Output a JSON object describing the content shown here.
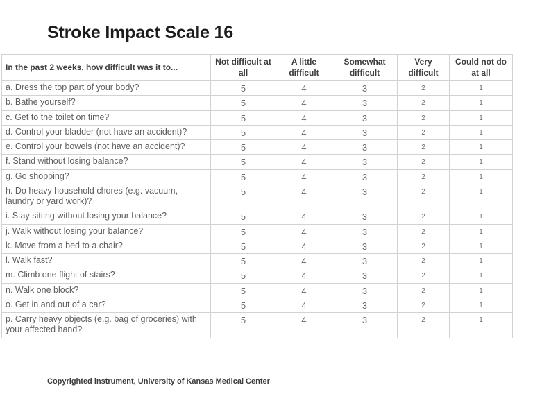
{
  "title": "Stroke Impact Scale 16",
  "table": {
    "header": {
      "question_label": "In the past 2 weeks, how difficult was it to...",
      "options": [
        "Not difficult at all",
        "A little difficult",
        "Somewhat difficult",
        "Very difficult",
        "Could not do at all"
      ]
    },
    "rows": [
      {
        "question": "a. Dress the top part of your body?",
        "values": [
          5,
          4,
          3,
          2,
          1
        ]
      },
      {
        "question": "b. Bathe yourself?",
        "values": [
          5,
          4,
          3,
          2,
          1
        ]
      },
      {
        "question": "c. Get to the toilet on time?",
        "values": [
          5,
          4,
          3,
          2,
          1
        ]
      },
      {
        "question": "d. Control your bladder (not have an accident)?",
        "values": [
          5,
          4,
          3,
          2,
          1
        ]
      },
      {
        "question": "e. Control your bowels (not have an accident)?",
        "values": [
          5,
          4,
          3,
          2,
          1
        ]
      },
      {
        "question": "f. Stand without losing balance?",
        "values": [
          5,
          4,
          3,
          2,
          1
        ]
      },
      {
        "question": "g. Go shopping?",
        "values": [
          5,
          4,
          3,
          2,
          1
        ]
      },
      {
        "question": "h. Do heavy household chores (e.g. vacuum, laundry or yard work)?",
        "values": [
          5,
          4,
          3,
          2,
          1
        ]
      },
      {
        "question": "i. Stay sitting without losing your balance?",
        "values": [
          5,
          4,
          3,
          2,
          1
        ]
      },
      {
        "question": "j. Walk without losing your balance?",
        "values": [
          5,
          4,
          3,
          2,
          1
        ]
      },
      {
        "question": "k. Move from a bed to a chair?",
        "values": [
          5,
          4,
          3,
          2,
          1
        ]
      },
      {
        "question": "l. Walk fast?",
        "values": [
          5,
          4,
          3,
          2,
          1
        ]
      },
      {
        "question": "m. Climb one flight of stairs?",
        "values": [
          5,
          4,
          3,
          2,
          1
        ]
      },
      {
        "question": "n. Walk one block?",
        "values": [
          5,
          4,
          3,
          2,
          1
        ]
      },
      {
        "question": "o. Get in and out of a car?",
        "values": [
          5,
          4,
          3,
          2,
          1
        ]
      },
      {
        "question": "p. Carry heavy objects (e.g. bag of groceries) with your affected hand?",
        "values": [
          5,
          4,
          3,
          2,
          1
        ]
      }
    ]
  },
  "footer": "Copyrighted instrument, University of Kansas Medical Center"
}
